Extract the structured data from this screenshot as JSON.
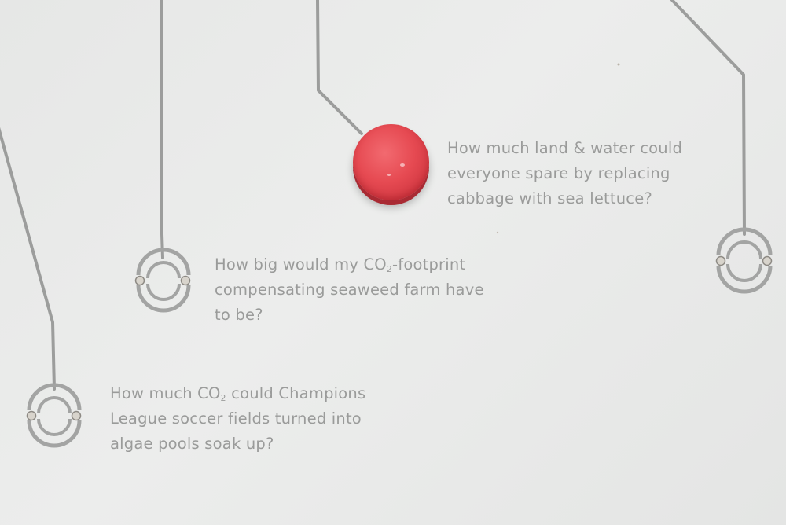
{
  "questions": {
    "land_water": {
      "lines": [
        "How much land & water could",
        "everyone spare by replacing",
        "cabbage with sea lettuce?"
      ]
    },
    "footprint": {
      "line1_before": "How big would my CO",
      "line1_sub": "2",
      "line1_after": "-footprint",
      "line2": "compensating seaweed farm have",
      "line3": "to be?"
    },
    "soccer": {
      "line1_before": "How much CO",
      "line1_sub": "2",
      "line1_after": " could Champions",
      "line2": "League soccer fields turned into",
      "line3": "algae pools soak up?"
    }
  },
  "colors": {
    "background": "#e9eae9",
    "trace": "#9c9d9c",
    "text": "#9a9b9a",
    "button": "#e64a52",
    "contact": "#d8d4cc"
  },
  "icons": {
    "button": "red-push-button",
    "contacts": "circuit-contact-ring"
  }
}
